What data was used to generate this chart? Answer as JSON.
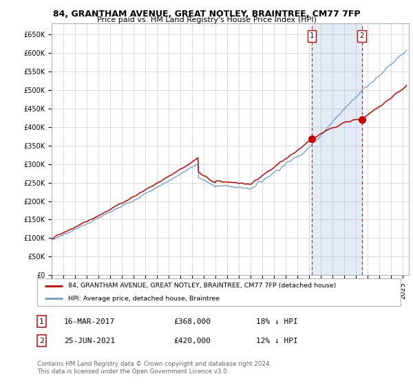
{
  "title": "84, GRANTHAM AVENUE, GREAT NOTLEY, BRAINTREE, CM77 7FP",
  "subtitle": "Price paid vs. HM Land Registry's House Price Index (HPI)",
  "ylabel_ticks": [
    "£0",
    "£50K",
    "£100K",
    "£150K",
    "£200K",
    "£250K",
    "£300K",
    "£350K",
    "£400K",
    "£450K",
    "£500K",
    "£550K",
    "£600K",
    "£650K"
  ],
  "ytick_values": [
    0,
    50000,
    100000,
    150000,
    200000,
    250000,
    300000,
    350000,
    400000,
    450000,
    500000,
    550000,
    600000,
    650000
  ],
  "ylim": [
    0,
    680000
  ],
  "xlim_start": 1995.0,
  "xlim_end": 2025.5,
  "sale1_date": 2017.21,
  "sale1_price": 368000,
  "sale2_date": 2021.48,
  "sale2_price": 420000,
  "hpi_color": "#6699cc",
  "hpi_fill_color": "#ddeeff",
  "price_color": "#cc0000",
  "legend_line1": "84, GRANTHAM AVENUE, GREAT NOTLEY, BRAINTREE, CM77 7FP (detached house)",
  "legend_line2": "HPI: Average price, detached house, Braintree",
  "table_row1": [
    "1",
    "16-MAR-2017",
    "£368,000",
    "18% ↓ HPI"
  ],
  "table_row2": [
    "2",
    "25-JUN-2021",
    "£420,000",
    "12% ↓ HPI"
  ],
  "footnote": "Contains HM Land Registry data © Crown copyright and database right 2024.\nThis data is licensed under the Open Government Licence v3.0.",
  "background_color": "#ffffff",
  "grid_color": "#cccccc",
  "dashed_color": "#cc0000"
}
